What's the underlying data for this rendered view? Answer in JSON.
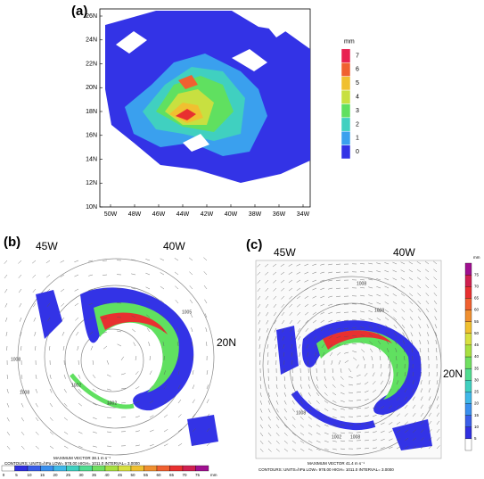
{
  "panels": [
    {
      "label": "(a)",
      "y_ticks": [
        "26N",
        "24N",
        "22N",
        "20N",
        "18N",
        "16N",
        "14N",
        "12N",
        "10N"
      ],
      "x_ticks": [
        "50W",
        "48W",
        "46W",
        "44W",
        "42W",
        "40W",
        "38W",
        "36W",
        "34W"
      ],
      "colorbar": {
        "unit": "mm",
        "ticks": [
          0,
          1,
          2,
          3,
          4,
          5,
          6,
          7
        ]
      }
    },
    {
      "label": "(b)",
      "lon_labels": [
        "45W",
        "40W"
      ],
      "lat_label": "20N",
      "contour_labels": [
        "1008",
        "1005",
        "1008",
        "1002",
        "1002"
      ],
      "colorbar": {
        "unit": "mm",
        "ticks": [
          0,
          5,
          10,
          15,
          20,
          25,
          30,
          35,
          40,
          45,
          50,
          55,
          60,
          65,
          70,
          75
        ]
      },
      "footer": [
        "MAXIMUM VECTOR  38.1 m s⁻¹",
        "CONTOURS: UNITS=hPa  LOW= 978.00  HIGH= 1011.0  INTERVAL= 3.0000"
      ]
    },
    {
      "label": "(c)",
      "lon_labels": [
        "45W",
        "40W"
      ],
      "lat_label": "20N",
      "contour_labels": [
        "1008",
        "1008",
        "1008",
        "1002",
        "1008"
      ],
      "colorbar": {
        "unit": "mm",
        "ticks": [
          5,
          10,
          15,
          20,
          25,
          30,
          35,
          40,
          45,
          50,
          55,
          60,
          65,
          70,
          75
        ]
      },
      "footer": [
        "MAXIMUM VECTOR  41.4 m s⁻¹",
        "CONTOURS: UNITS=hPa  LOW= 978.00  HIGH= 1011.0  INTERVAL= 3.0000"
      ]
    }
  ]
}
